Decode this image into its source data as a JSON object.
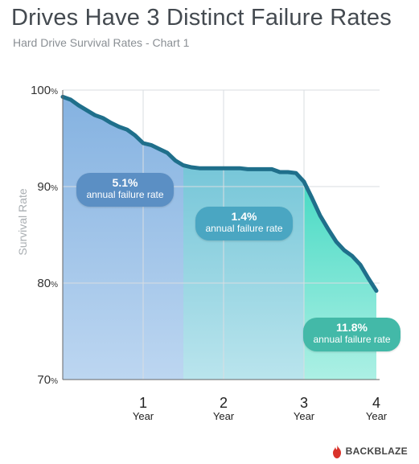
{
  "title": "Drives Have 3 Distinct Failure Rates",
  "subtitle": "Hard Drive Survival Rates - Chart 1",
  "colors": {
    "line": "#1f6f8b",
    "band1": "#89b5e3",
    "band2": "#7fcbd9",
    "band3": "#4fdcc6",
    "badge1": "#5b8fc4",
    "badge2": "#4aa6c2",
    "badge3": "#43b9a8",
    "brand": "#d9322a"
  },
  "brand": "BACKBLAZE",
  "chart_data": {
    "type": "area",
    "title": "Drives Have 3 Distinct Failure Rates",
    "subtitle": "Hard Drive Survival Rates - Chart 1",
    "xlabel": "",
    "ylabel": "Survival Rate",
    "xlim": [
      0,
      4
    ],
    "ylim": [
      70,
      100
    ],
    "y_ticks": [
      {
        "value": 100,
        "num": "100",
        "unit": "%"
      },
      {
        "value": 90,
        "num": "90",
        "unit": "%"
      },
      {
        "value": 80,
        "num": "80",
        "unit": "%"
      },
      {
        "value": 70,
        "num": "70",
        "unit": "%"
      }
    ],
    "x_ticks": [
      {
        "value": 1,
        "num": "1",
        "word": "Year"
      },
      {
        "value": 2,
        "num": "2",
        "word": "Year"
      },
      {
        "value": 3,
        "num": "3",
        "word": "Year"
      },
      {
        "value": 4,
        "num": "4",
        "word": "Year"
      }
    ],
    "grid": true,
    "series": [
      {
        "x": [
          0,
          0.1,
          0.2,
          0.3,
          0.4,
          0.5,
          0.6,
          0.7,
          0.8,
          0.9,
          1.0,
          1.1,
          1.2,
          1.3,
          1.4,
          1.5,
          1.6,
          1.7,
          1.8,
          1.9,
          2.0,
          2.1,
          2.2,
          2.3,
          2.4,
          2.5,
          2.6,
          2.7,
          2.8,
          2.9,
          3.0,
          3.1,
          3.2,
          3.3,
          3.4,
          3.5,
          3.6,
          3.7,
          3.8,
          3.9
        ],
        "values": [
          99.3,
          99.0,
          98.4,
          97.9,
          97.4,
          97.1,
          96.6,
          96.2,
          95.9,
          95.3,
          94.5,
          94.3,
          93.9,
          93.5,
          92.7,
          92.2,
          92.0,
          91.9,
          91.9,
          91.9,
          91.9,
          91.9,
          91.9,
          91.8,
          91.8,
          91.8,
          91.8,
          91.5,
          91.5,
          91.4,
          90.5,
          88.8,
          87.0,
          85.6,
          84.3,
          83.4,
          82.8,
          81.9,
          80.5,
          79.2
        ]
      }
    ],
    "regions": [
      {
        "from": 0,
        "to": 1.5,
        "rate": "5.1%",
        "label": "annual failure rate"
      },
      {
        "from": 1.5,
        "to": 3.0,
        "rate": "1.4%",
        "label": "annual failure rate"
      },
      {
        "from": 3.0,
        "to": 3.9,
        "rate": "11.8%",
        "label": "annual failure rate"
      }
    ]
  }
}
